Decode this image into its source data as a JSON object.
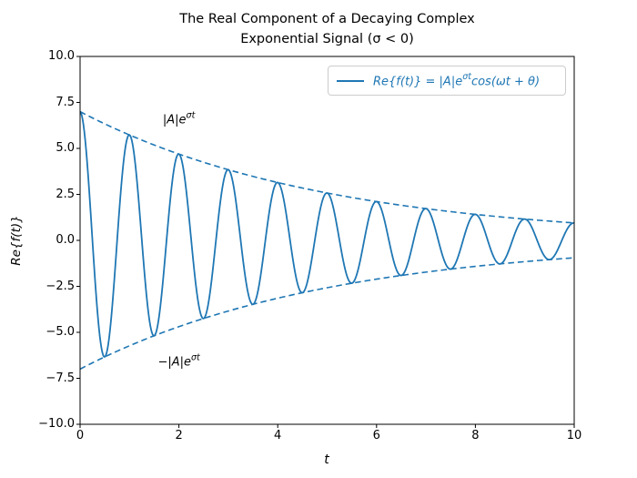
{
  "figure": {
    "title_line1": "The Real Component of a Decaying Complex",
    "title_line2": "Exponential Signal (σ < 0)",
    "xlabel": "t",
    "ylabel": "Re{f(t)}"
  },
  "legend": {
    "label_base": "Re{f(t)} = |A|e",
    "label_sup": "σt",
    "label_rest": "cos(ωt + θ)",
    "text_color": "#1f77b4",
    "line_color": "#1f77b4"
  },
  "annotations": {
    "upper": {
      "base": "|A|e",
      "sup": "σt",
      "t": 2.0,
      "y": 6.6
    },
    "lower": {
      "base": "−|A|e",
      "sup": "σt",
      "t": 2.0,
      "y": -6.6
    }
  },
  "chart_data": {
    "type": "line",
    "title": "The Real Component of a Decaying Complex Exponential Signal (σ < 0)",
    "xlabel": "t",
    "ylabel": "Re{f(t)}",
    "xlim": [
      0,
      10
    ],
    "ylim": [
      -10,
      10
    ],
    "xtick_values": [
      0,
      2,
      4,
      6,
      8,
      10
    ],
    "xtick_labels": [
      "0",
      "2",
      "4",
      "6",
      "8",
      "10"
    ],
    "ytick_values": [
      10,
      7.5,
      5,
      2.5,
      0,
      -2.5,
      -5,
      -7.5,
      -10
    ],
    "ytick_labels": [
      "10.0",
      "7.5",
      "5.0",
      "2.5",
      "0.0",
      "−2.5",
      "−5.0",
      "−7.5",
      "−10.0"
    ],
    "grid": false,
    "legend_position": "upper right",
    "series": [
      {
        "name": "signal",
        "label": "Re{f(t)} = |A|e^(σt)cos(ωt + θ)",
        "formula": "y = A·e^(σt)·cos(ωt + θ)",
        "A": 7,
        "sigma": -0.2,
        "omega": 6.283185307,
        "theta": 0,
        "t_start": 0,
        "t_end": 10,
        "samples": 1200,
        "style": "solid",
        "color": "#1f77b4",
        "width": 1.8
      },
      {
        "name": "upper-envelope",
        "label": "|A|e^(σt)",
        "formula": "y = A·e^(σt)",
        "A": 7,
        "sigma": -0.2,
        "omega": 0,
        "theta": 0,
        "t_start": 0,
        "t_end": 10,
        "samples": 200,
        "style": "dashed",
        "color": "#1f77b4",
        "width": 1.6
      },
      {
        "name": "lower-envelope",
        "label": "−|A|e^(σt)",
        "formula": "y = −A·e^(σt)",
        "A": -7,
        "sigma": -0.2,
        "omega": 0,
        "theta": 0,
        "t_start": 0,
        "t_end": 10,
        "samples": 200,
        "style": "dashed",
        "color": "#1f77b4",
        "width": 1.6
      }
    ]
  }
}
